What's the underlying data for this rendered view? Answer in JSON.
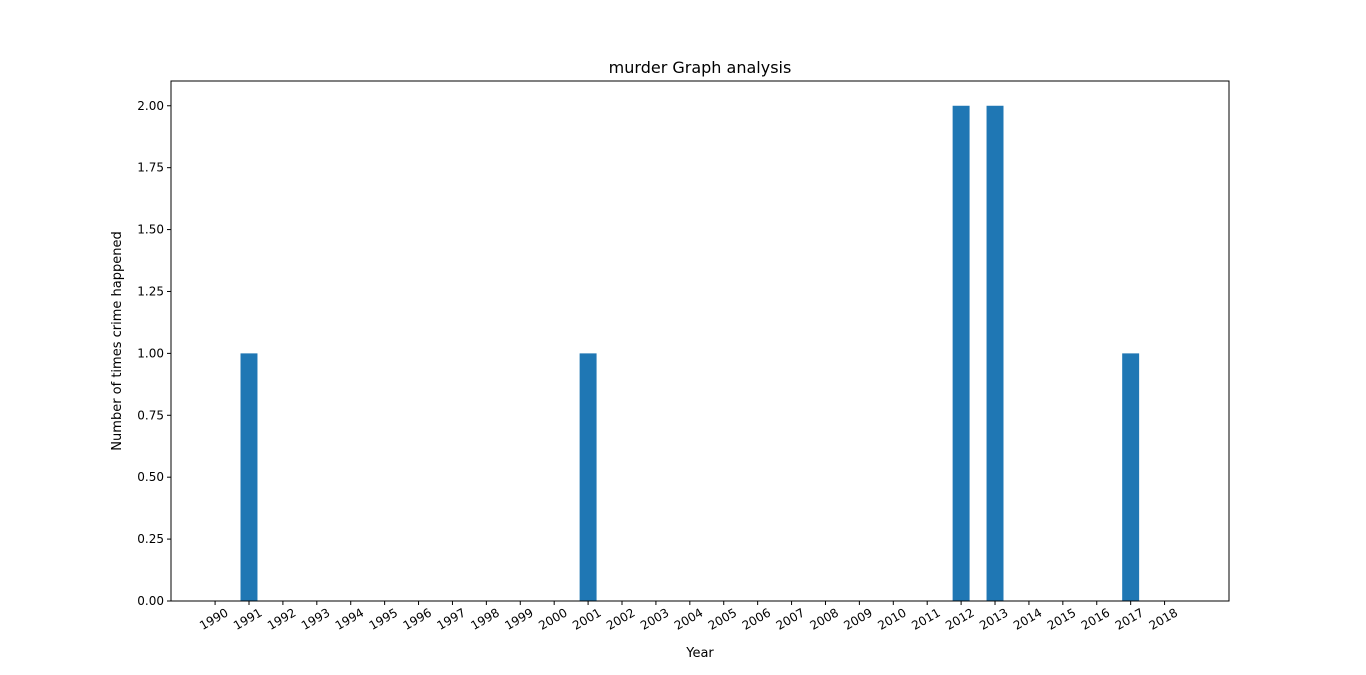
{
  "chart_data": {
    "type": "bar",
    "title": "murder Graph analysis",
    "xlabel": "Year",
    "ylabel": "Number of times crime happened",
    "categories": [
      "1990",
      "1991",
      "1992",
      "1993",
      "1994",
      "1995",
      "1996",
      "1997",
      "1998",
      "1999",
      "2000",
      "2001",
      "2002",
      "2003",
      "2004",
      "2005",
      "2006",
      "2007",
      "2008",
      "2009",
      "2010",
      "2011",
      "2012",
      "2013",
      "2014",
      "2015",
      "2016",
      "2017",
      "2018"
    ],
    "bars": [
      {
        "x": 1991,
        "value": 1
      },
      {
        "x": 2001,
        "value": 1
      },
      {
        "x": 2012,
        "value": 2
      },
      {
        "x": 2013,
        "value": 2
      },
      {
        "x": 2017,
        "value": 1
      }
    ],
    "xlim": [
      1988.7,
      2019.9
    ],
    "ylim": [
      0,
      2.1
    ],
    "yticks": [
      "0.00",
      "0.25",
      "0.50",
      "0.75",
      "1.00",
      "1.25",
      "1.50",
      "1.75",
      "2.00"
    ],
    "grid": false,
    "bar_color": "#1f77b4"
  }
}
